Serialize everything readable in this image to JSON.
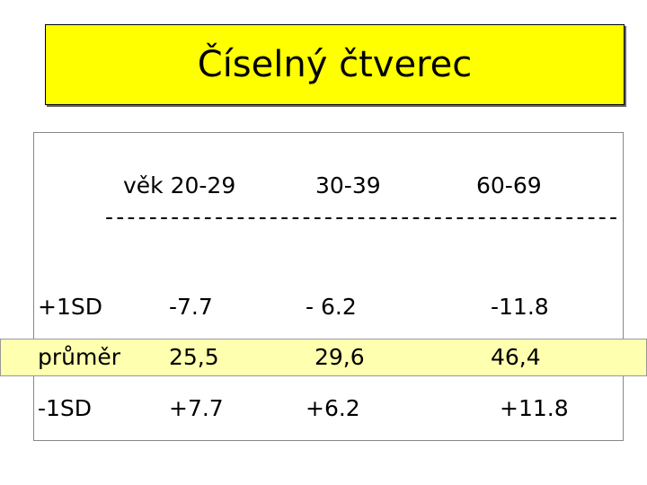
{
  "title": "Číselný čtverec",
  "header": {
    "cells": [
      "věk 20-29",
      "30-39",
      "60-69"
    ],
    "rule": "-----------------------------------------------"
  },
  "table": {
    "rows": [
      [
        "+1SD",
        "-7.7",
        "- 6.2",
        "-11.8"
      ],
      [
        "průměr",
        "25,5",
        "29,6",
        "46,4"
      ],
      [
        "-1SD",
        "+7.7",
        "+6.2",
        "+11.8"
      ]
    ]
  }
}
